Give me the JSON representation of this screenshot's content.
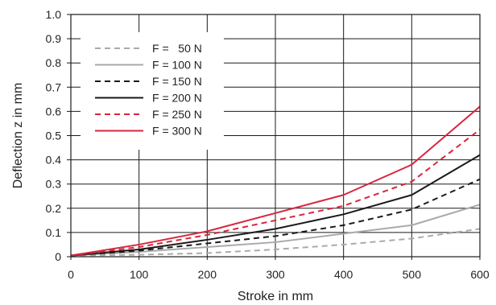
{
  "chart_data": {
    "type": "line",
    "title": "",
    "xlabel": "Stroke in mm",
    "ylabel": "Deflection z in mm",
    "xlim": [
      0,
      600
    ],
    "ylim": [
      0,
      1.0
    ],
    "x_ticks": [
      "0",
      "100",
      "200",
      "300",
      "400",
      "500",
      "600"
    ],
    "y_ticks": [
      "0",
      "0.1",
      "0.2",
      "0.3",
      "0.4",
      "0.5",
      "0.6",
      "0.7",
      "0.8",
      "0.9",
      "1.0"
    ],
    "grid": true,
    "legend_position": "top-left",
    "x": [
      0,
      100,
      200,
      300,
      400,
      500,
      600
    ],
    "series": [
      {
        "name": "F =   50 N",
        "color": "#aaaaaa",
        "dash": "dashed",
        "values": [
          0.005,
          0.008,
          0.015,
          0.03,
          0.05,
          0.075,
          0.115
        ]
      },
      {
        "name": "F = 100 N",
        "color": "#aaaaaa",
        "dash": "solid",
        "values": [
          0.005,
          0.02,
          0.04,
          0.06,
          0.095,
          0.13,
          0.215
        ]
      },
      {
        "name": "F = 150 N",
        "color": "#1a1a1a",
        "dash": "dashed",
        "values": [
          0.005,
          0.025,
          0.055,
          0.085,
          0.13,
          0.195,
          0.32
        ]
      },
      {
        "name": "F = 200 N",
        "color": "#1a1a1a",
        "dash": "solid",
        "values": [
          0.005,
          0.03,
          0.07,
          0.115,
          0.175,
          0.255,
          0.42
        ]
      },
      {
        "name": "F = 250 N",
        "color": "#d7263d",
        "dash": "dashed",
        "values": [
          0.005,
          0.04,
          0.09,
          0.15,
          0.21,
          0.31,
          0.525
        ]
      },
      {
        "name": "F = 300 N",
        "color": "#d7263d",
        "dash": "solid",
        "values": [
          0.005,
          0.05,
          0.105,
          0.18,
          0.255,
          0.38,
          0.62
        ]
      }
    ]
  }
}
